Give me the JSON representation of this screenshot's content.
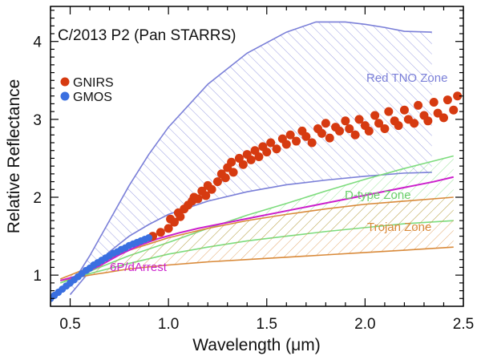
{
  "chart_data": {
    "type": "scatter",
    "title": "C/2013 P2 (Pan STARRS)",
    "xlabel": "Wavelength (μm)",
    "ylabel": "Relative Reflectance",
    "xlim": [
      0.4,
      2.5
    ],
    "ylim": [
      0.6,
      4.45
    ],
    "x_ticks": [
      0.5,
      1.0,
      1.5,
      2.0,
      2.5
    ],
    "x_tick_labels": [
      "0.5",
      "1.0",
      "1.5",
      "2.0",
      "2.5"
    ],
    "y_ticks": [
      1,
      2,
      3,
      4
    ],
    "y_tick_labels": [
      "1",
      "2",
      "3",
      "4"
    ],
    "grid": false,
    "legend_position": "upper-left",
    "zones": [
      {
        "name": "Red TNO Zone",
        "color": "#7a7fd8",
        "upper": [
          [
            0.5,
            0.85
          ],
          [
            0.6,
            1.25
          ],
          [
            0.7,
            1.7
          ],
          [
            0.8,
            2.15
          ],
          [
            0.9,
            2.55
          ],
          [
            1.0,
            2.9
          ],
          [
            1.2,
            3.45
          ],
          [
            1.4,
            3.85
          ],
          [
            1.6,
            4.12
          ],
          [
            1.75,
            4.25
          ],
          [
            1.9,
            4.25
          ],
          [
            2.0,
            4.22
          ],
          [
            2.1,
            4.18
          ],
          [
            2.2,
            4.13
          ],
          [
            2.34,
            4.12
          ]
        ],
        "lower": [
          [
            0.5,
            0.75
          ],
          [
            0.6,
            1.05
          ],
          [
            0.7,
            1.3
          ],
          [
            0.8,
            1.5
          ],
          [
            0.9,
            1.65
          ],
          [
            1.0,
            1.78
          ],
          [
            1.2,
            1.95
          ],
          [
            1.4,
            2.07
          ],
          [
            1.6,
            2.16
          ],
          [
            1.8,
            2.22
          ],
          [
            2.0,
            2.27
          ],
          [
            2.2,
            2.31
          ],
          [
            2.34,
            2.32
          ]
        ]
      },
      {
        "name": "D-type Zone",
        "color": "#7ddc7d",
        "upper": [
          [
            0.45,
            0.9
          ],
          [
            0.6,
            1.05
          ],
          [
            0.8,
            1.25
          ],
          [
            1.0,
            1.42
          ],
          [
            1.2,
            1.6
          ],
          [
            1.4,
            1.77
          ],
          [
            1.6,
            1.92
          ],
          [
            1.8,
            2.08
          ],
          [
            2.0,
            2.23
          ],
          [
            2.2,
            2.37
          ],
          [
            2.45,
            2.53
          ]
        ],
        "lower": [
          [
            0.45,
            0.9
          ],
          [
            0.6,
            1.02
          ],
          [
            0.8,
            1.15
          ],
          [
            1.0,
            1.27
          ],
          [
            1.2,
            1.36
          ],
          [
            1.4,
            1.44
          ],
          [
            1.6,
            1.5
          ],
          [
            1.8,
            1.56
          ],
          [
            2.0,
            1.61
          ],
          [
            2.2,
            1.66
          ],
          [
            2.45,
            1.7
          ]
        ]
      },
      {
        "name": "Trojan Zone",
        "color": "#d98a3a",
        "upper": [
          [
            0.45,
            0.95
          ],
          [
            0.6,
            1.1
          ],
          [
            0.8,
            1.32
          ],
          [
            1.0,
            1.48
          ],
          [
            1.2,
            1.6
          ],
          [
            1.4,
            1.7
          ],
          [
            1.6,
            1.78
          ],
          [
            1.8,
            1.85
          ],
          [
            2.0,
            1.91
          ],
          [
            2.2,
            1.95
          ],
          [
            2.45,
            2.0
          ]
        ],
        "lower": [
          [
            0.45,
            0.93
          ],
          [
            0.6,
            1.0
          ],
          [
            0.8,
            1.08
          ],
          [
            1.0,
            1.13
          ],
          [
            1.2,
            1.17
          ],
          [
            1.4,
            1.2
          ],
          [
            1.6,
            1.23
          ],
          [
            1.8,
            1.26
          ],
          [
            2.0,
            1.29
          ],
          [
            2.2,
            1.32
          ],
          [
            2.45,
            1.36
          ]
        ]
      }
    ],
    "series": [
      {
        "name": "6P/dArrest",
        "kind": "line",
        "color": "#cc1fcc",
        "x": [
          0.45,
          0.55,
          0.65,
          0.75,
          0.85,
          0.95,
          1.05,
          1.15,
          1.25,
          1.35,
          1.45,
          1.55,
          1.65,
          1.75,
          1.85,
          1.95,
          2.05,
          2.15,
          2.25,
          2.35,
          2.45
        ],
        "y": [
          0.93,
          1.0,
          1.12,
          1.26,
          1.38,
          1.47,
          1.54,
          1.6,
          1.65,
          1.7,
          1.75,
          1.8,
          1.85,
          1.9,
          1.95,
          2.0,
          2.05,
          2.1,
          2.15,
          2.2,
          2.26
        ]
      },
      {
        "name": "GNIRS",
        "kind": "scatter",
        "color": "#d63a10",
        "x": [
          0.92,
          0.96,
          1.0,
          1.01,
          1.03,
          1.05,
          1.06,
          1.08,
          1.1,
          1.12,
          1.13,
          1.15,
          1.17,
          1.19,
          1.2,
          1.22,
          1.25,
          1.27,
          1.29,
          1.3,
          1.32,
          1.33,
          1.36,
          1.38,
          1.4,
          1.42,
          1.44,
          1.46,
          1.48,
          1.5,
          1.52,
          1.55,
          1.58,
          1.6,
          1.62,
          1.65,
          1.68,
          1.7,
          1.73,
          1.76,
          1.78,
          1.8,
          1.82,
          1.85,
          1.87,
          1.9,
          1.92,
          1.95,
          1.97,
          2.0,
          2.02,
          2.05,
          2.07,
          2.1,
          2.12,
          2.15,
          2.17,
          2.2,
          2.22,
          2.25,
          2.27,
          2.3,
          2.32,
          2.35,
          2.37,
          2.4,
          2.42,
          2.45,
          2.47
        ],
        "y": [
          1.5,
          1.55,
          1.6,
          1.72,
          1.68,
          1.8,
          1.75,
          1.85,
          1.9,
          1.95,
          2.0,
          1.98,
          2.08,
          2.02,
          2.15,
          2.1,
          2.2,
          2.3,
          2.25,
          2.38,
          2.45,
          2.32,
          2.5,
          2.42,
          2.55,
          2.48,
          2.6,
          2.52,
          2.65,
          2.58,
          2.7,
          2.62,
          2.75,
          2.68,
          2.8,
          2.72,
          2.85,
          2.78,
          2.7,
          2.88,
          2.82,
          2.95,
          2.76,
          2.9,
          2.85,
          2.98,
          2.88,
          2.8,
          3.0,
          2.92,
          2.85,
          3.05,
          2.95,
          2.88,
          3.1,
          2.98,
          2.92,
          3.12,
          3.0,
          2.95,
          3.18,
          3.05,
          2.98,
          3.22,
          3.08,
          3.02,
          3.25,
          3.12,
          3.3
        ]
      },
      {
        "name": "GMOS",
        "kind": "scatter",
        "color": "#3a6fe0",
        "x": [
          0.4,
          0.42,
          0.44,
          0.46,
          0.48,
          0.5,
          0.52,
          0.54,
          0.56,
          0.58,
          0.6,
          0.62,
          0.64,
          0.66,
          0.68,
          0.7,
          0.72,
          0.74,
          0.76,
          0.78,
          0.8,
          0.82,
          0.84,
          0.86,
          0.88,
          0.9
        ],
        "y": [
          0.7,
          0.74,
          0.78,
          0.82,
          0.86,
          0.9,
          0.94,
          0.98,
          1.02,
          1.06,
          1.09,
          1.13,
          1.16,
          1.19,
          1.22,
          1.25,
          1.28,
          1.3,
          1.33,
          1.35,
          1.38,
          1.4,
          1.42,
          1.44,
          1.46,
          1.48
        ]
      }
    ]
  }
}
